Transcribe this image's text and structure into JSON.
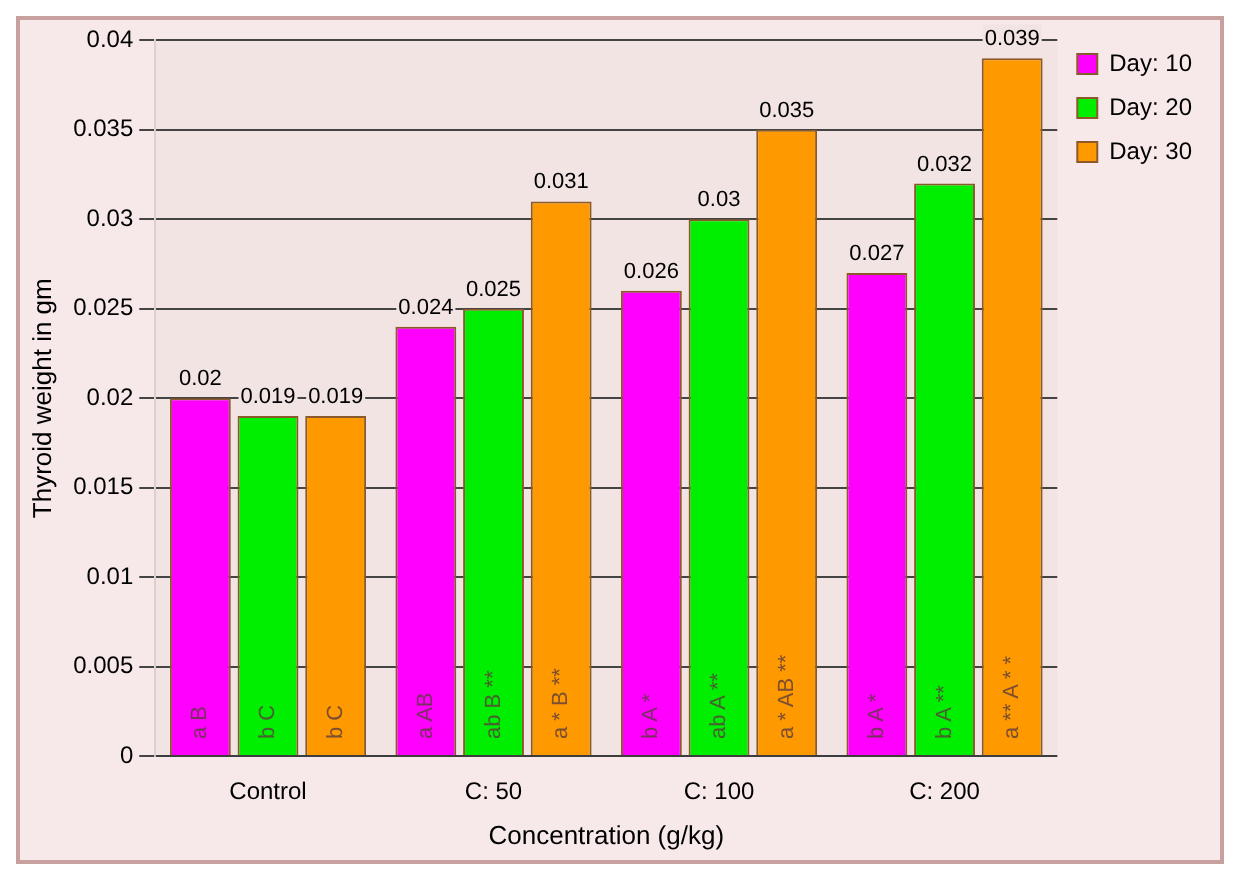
{
  "chart_data": {
    "type": "bar",
    "xlabel": "Concentration (g/kg)",
    "ylabel": "Thyroid weight in gm",
    "categories": [
      "Control",
      "C: 50",
      "C: 100",
      "C: 200"
    ],
    "series": [
      {
        "name": "Day: 10",
        "color": "#ff00ff",
        "values": [
          0.02,
          0.024,
          0.026,
          0.027
        ]
      },
      {
        "name": "Day: 20",
        "color": "#00ee00",
        "values": [
          0.019,
          0.025,
          0.03,
          0.032
        ]
      },
      {
        "name": "Day: 30",
        "color": "#ff9900",
        "values": [
          0.019,
          0.031,
          0.035,
          0.039
        ]
      }
    ],
    "ylim": [
      0,
      0.04
    ],
    "yticks": [
      0,
      0.005,
      0.01,
      0.015,
      0.02,
      0.025,
      0.03,
      0.035,
      0.04
    ],
    "grid": "y",
    "legend": "top right",
    "data_labels": true,
    "annotations": [
      "a B",
      "a AB",
      "b A *",
      "b A *",
      "b C",
      "ab B **",
      "ab A **",
      "b A **",
      "b C",
      "a * B **",
      "a * AB **",
      "a ** A * *"
    ]
  }
}
